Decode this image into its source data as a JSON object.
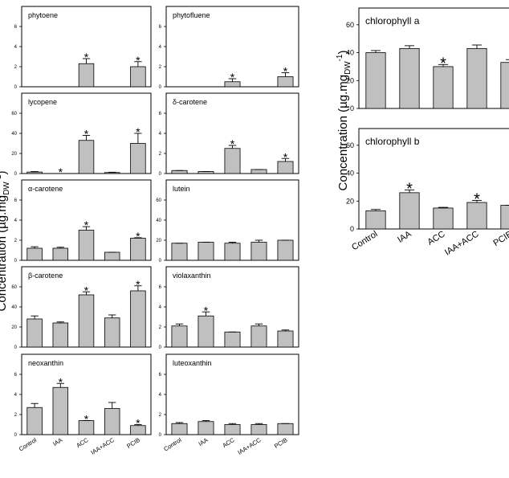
{
  "categories": [
    "Control",
    "IAA",
    "ACC",
    "IAA+ACC",
    "PCIB"
  ],
  "ylabel": {
    "text": "Concentration (µg.mg",
    "sub": "DW",
    "sup": "-1",
    "close": ")"
  },
  "chart_data": [
    {
      "type": "bar",
      "title": "phytoene",
      "values": [
        0,
        0,
        2.3,
        0,
        2.0
      ],
      "errors": [
        0,
        0,
        0.5,
        0,
        0.5
      ],
      "ylim": [
        0,
        8
      ],
      "yticks": [
        0,
        2,
        4,
        6
      ],
      "color": "#c0c0c0",
      "annotations": [
        {
          "category": "ACC",
          "text": "*"
        },
        {
          "category": "PCIB",
          "text": "*"
        }
      ]
    },
    {
      "type": "bar",
      "title": "lycopene",
      "values": [
        1.5,
        0,
        33,
        1,
        30
      ],
      "errors": [
        0.5,
        0,
        5,
        0.3,
        10
      ],
      "ylim": [
        0,
        80
      ],
      "yticks": [
        0,
        20,
        40,
        60
      ],
      "color": "#c0c0c0",
      "annotations": [
        {
          "category": "IAA",
          "text": "*"
        },
        {
          "category": "ACC",
          "text": "*"
        },
        {
          "category": "PCIB",
          "text": "*"
        }
      ]
    },
    {
      "type": "bar",
      "title": "α-carotene",
      "values": [
        1.2,
        1.2,
        3.0,
        0.8,
        2.2
      ],
      "errors": [
        0.15,
        0.1,
        0.35,
        0,
        0.05
      ],
      "ylim": [
        0,
        8
      ],
      "yticks": [
        0,
        2,
        4,
        6
      ],
      "color": "#c0c0c0",
      "annotations": [
        {
          "category": "ACC",
          "text": "*"
        },
        {
          "category": "PCIB",
          "text": "*"
        }
      ]
    },
    {
      "type": "bar",
      "title": "β-carotene",
      "values": [
        28,
        24,
        52,
        29,
        56
      ],
      "errors": [
        3,
        1,
        3,
        3,
        5
      ],
      "ylim": [
        0,
        80
      ],
      "yticks": [
        0,
        20,
        40,
        60
      ],
      "color": "#c0c0c0",
      "annotations": [
        {
          "category": "ACC",
          "text": "*"
        },
        {
          "category": "PCIB",
          "text": "*"
        }
      ]
    },
    {
      "type": "bar",
      "title": "neoxanthin",
      "values": [
        2.7,
        4.7,
        1.4,
        2.6,
        0.9
      ],
      "errors": [
        0.4,
        0.4,
        0,
        0.6,
        0.1
      ],
      "ylim": [
        0,
        8
      ],
      "yticks": [
        0,
        2,
        4,
        6
      ],
      "color": "#c0c0c0",
      "annotations": [
        {
          "category": "IAA",
          "text": "*"
        },
        {
          "category": "ACC",
          "text": "*"
        },
        {
          "category": "PCIB",
          "text": "*"
        }
      ]
    },
    {
      "type": "bar",
      "title": "phytofluene",
      "values": [
        0,
        0,
        0.5,
        0,
        1.0
      ],
      "errors": [
        0,
        0,
        0.3,
        0,
        0.4
      ],
      "ylim": [
        0,
        8
      ],
      "yticks": [
        0,
        2,
        4,
        6
      ],
      "color": "#c0c0c0",
      "annotations": [
        {
          "category": "ACC",
          "text": "*"
        },
        {
          "category": "PCIB",
          "text": "*"
        }
      ]
    },
    {
      "type": "bar",
      "title": "δ-carotene",
      "values": [
        0.3,
        0.2,
        2.5,
        0.4,
        1.2
      ],
      "errors": [
        0,
        0,
        0.3,
        0,
        0.3
      ],
      "ylim": [
        0,
        8
      ],
      "yticks": [
        0,
        2,
        4,
        6
      ],
      "color": "#c0c0c0",
      "annotations": [
        {
          "category": "ACC",
          "text": "*"
        },
        {
          "category": "PCIB",
          "text": "*"
        }
      ]
    },
    {
      "type": "bar",
      "title": "lutein",
      "values": [
        17,
        18,
        17,
        18,
        20
      ],
      "errors": [
        0,
        0,
        1,
        2,
        0
      ],
      "ylim": [
        0,
        80
      ],
      "yticks": [
        0,
        20,
        40,
        60
      ],
      "color": "#c0c0c0",
      "annotations": []
    },
    {
      "type": "bar",
      "title": "violaxanthin",
      "values": [
        2.1,
        3.1,
        1.5,
        2.1,
        1.6
      ],
      "errors": [
        0.2,
        0.4,
        0,
        0.2,
        0.1
      ],
      "ylim": [
        0,
        8
      ],
      "yticks": [
        0,
        2,
        4,
        6
      ],
      "color": "#c0c0c0",
      "annotations": [
        {
          "category": "IAA",
          "text": "*"
        }
      ]
    },
    {
      "type": "bar",
      "title": "luteoxanthin",
      "values": [
        1.1,
        1.3,
        1.0,
        1.0,
        1.1
      ],
      "errors": [
        0.1,
        0.1,
        0.1,
        0.1,
        0
      ],
      "ylim": [
        0,
        8
      ],
      "yticks": [
        0,
        2,
        4,
        6
      ],
      "color": "#c0c0c0",
      "annotations": []
    },
    {
      "type": "bar",
      "title": "chlorophyll a",
      "values": [
        40,
        43,
        30,
        43,
        33
      ],
      "errors": [
        1.5,
        2,
        1.5,
        2.5,
        2
      ],
      "ylim": [
        0,
        72
      ],
      "yticks": [
        0,
        20,
        40,
        60
      ],
      "color": "#c0c0c0",
      "annotations": [
        {
          "category": "ACC",
          "text": "*"
        }
      ]
    },
    {
      "type": "bar",
      "title": "chlorophyll b",
      "values": [
        13,
        26,
        15,
        19,
        17
      ],
      "errors": [
        1,
        2,
        0.5,
        1.5,
        0
      ],
      "ylim": [
        0,
        72
      ],
      "yticks": [
        0,
        20,
        40,
        60
      ],
      "color": "#c0c0c0",
      "annotations": [
        {
          "category": "IAA",
          "text": "*"
        },
        {
          "category": "IAA+ACC",
          "text": "*"
        }
      ]
    }
  ]
}
